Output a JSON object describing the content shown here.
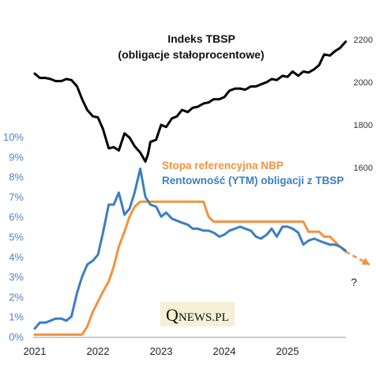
{
  "chart_data": {
    "type": "line",
    "title": "Indeks TBSP",
    "subtitle": "(obligacje stałoprocentowe)",
    "x_ticks": [
      "2021",
      "2022",
      "2023",
      "2024",
      "2025"
    ],
    "x_range": [
      2021.0,
      2026.3
    ],
    "y_left": {
      "ticks": [
        "0%",
        "1%",
        "2%",
        "3%",
        "4%",
        "5%",
        "6%",
        "7%",
        "8%",
        "9%",
        "10%"
      ],
      "range": [
        0,
        10
      ]
    },
    "y_right": {
      "ticks": [
        "1600",
        "1800",
        "2000",
        "2200"
      ],
      "range": [
        1600,
        2200
      ]
    },
    "grid": false,
    "legend_position": "center-right",
    "series": [
      {
        "name": "Indeks TBSP",
        "axis": "right",
        "color": "#000000",
        "x": [
          2021.0,
          2021.08,
          2021.17,
          2021.25,
          2021.33,
          2021.42,
          2021.5,
          2021.58,
          2021.67,
          2021.75,
          2021.83,
          2021.92,
          2022.0,
          2022.08,
          2022.17,
          2022.25,
          2022.33,
          2022.42,
          2022.5,
          2022.58,
          2022.67,
          2022.75,
          2022.79,
          2022.83,
          2022.92,
          2023.0,
          2023.08,
          2023.17,
          2023.25,
          2023.33,
          2023.42,
          2023.5,
          2023.58,
          2023.67,
          2023.75,
          2023.83,
          2023.92,
          2024.0,
          2024.08,
          2024.17,
          2024.25,
          2024.33,
          2024.42,
          2024.5,
          2024.58,
          2024.67,
          2024.75,
          2024.83,
          2024.92,
          2025.0,
          2025.08,
          2025.17,
          2025.25,
          2025.33,
          2025.42,
          2025.5,
          2025.58,
          2025.67,
          2025.75,
          2025.83,
          2025.92
        ],
        "values": [
          2040,
          2020,
          2020,
          2015,
          2005,
          2005,
          2015,
          2010,
          1980,
          1920,
          1870,
          1840,
          1835,
          1780,
          1690,
          1695,
          1680,
          1760,
          1740,
          1700,
          1670,
          1628,
          1660,
          1720,
          1730,
          1800,
          1790,
          1830,
          1840,
          1870,
          1860,
          1880,
          1885,
          1900,
          1905,
          1920,
          1920,
          1930,
          1960,
          1970,
          1970,
          1965,
          1980,
          1980,
          1990,
          2000,
          2015,
          2010,
          2030,
          2025,
          2050,
          2030,
          2050,
          2045,
          2060,
          2080,
          2130,
          2125,
          2145,
          2160,
          2190
        ]
      },
      {
        "name": "Stopa referencyjna NBP",
        "axis": "left",
        "color": "#f4923e",
        "x": [
          2021.0,
          2021.75,
          2021.83,
          2021.92,
          2022.0,
          2022.08,
          2022.17,
          2022.25,
          2022.33,
          2022.42,
          2022.5,
          2022.58,
          2022.67,
          2022.75,
          2023.0,
          2023.5,
          2023.67,
          2023.75,
          2023.83,
          2024.0,
          2024.5,
          2025.0,
          2025.25,
          2025.33,
          2025.5,
          2025.58,
          2025.67,
          2025.75,
          2025.83,
          2025.92
        ],
        "values": [
          0.1,
          0.1,
          0.5,
          1.25,
          1.75,
          2.25,
          2.75,
          3.5,
          4.5,
          5.25,
          6.0,
          6.5,
          6.75,
          6.75,
          6.75,
          6.75,
          6.75,
          6.0,
          5.75,
          5.75,
          5.75,
          5.75,
          5.75,
          5.25,
          5.25,
          5.0,
          5.0,
          4.75,
          4.5,
          4.25
        ]
      },
      {
        "name": "Rentowność (YTM) obligacji z TBSP",
        "axis": "left",
        "color": "#3b7ec2",
        "x": [
          2021.0,
          2021.08,
          2021.17,
          2021.25,
          2021.33,
          2021.42,
          2021.5,
          2021.58,
          2021.67,
          2021.75,
          2021.83,
          2021.92,
          2022.0,
          2022.08,
          2022.17,
          2022.25,
          2022.33,
          2022.42,
          2022.5,
          2022.58,
          2022.67,
          2022.75,
          2022.79,
          2022.83,
          2022.92,
          2023.0,
          2023.08,
          2023.17,
          2023.25,
          2023.33,
          2023.42,
          2023.5,
          2023.58,
          2023.67,
          2023.75,
          2023.83,
          2023.92,
          2024.0,
          2024.08,
          2024.17,
          2024.25,
          2024.33,
          2024.42,
          2024.5,
          2024.58,
          2024.67,
          2024.75,
          2024.83,
          2024.92,
          2025.0,
          2025.08,
          2025.17,
          2025.25,
          2025.33,
          2025.42,
          2025.5,
          2025.58,
          2025.67,
          2025.75,
          2025.83,
          2025.92
        ],
        "values": [
          0.4,
          0.7,
          0.7,
          0.8,
          0.9,
          0.9,
          0.8,
          1.0,
          2.2,
          3.0,
          3.6,
          3.8,
          4.1,
          5.2,
          6.6,
          6.6,
          7.2,
          6.1,
          6.4,
          7.2,
          8.4,
          7.0,
          6.8,
          6.6,
          6.5,
          6.0,
          6.2,
          5.9,
          5.8,
          5.7,
          5.6,
          5.4,
          5.4,
          5.3,
          5.3,
          5.2,
          5.0,
          5.1,
          5.3,
          5.4,
          5.5,
          5.4,
          5.3,
          5.0,
          4.9,
          5.1,
          5.4,
          5.0,
          5.5,
          5.5,
          5.4,
          5.2,
          4.6,
          4.8,
          4.9,
          4.8,
          4.7,
          4.6,
          4.6,
          4.5,
          4.3
        ]
      }
    ],
    "forecast": {
      "x": [
        2025.92,
        2026.3
      ],
      "values": [
        4.25,
        3.6
      ],
      "color": "#f4923e"
    },
    "annotation": "?",
    "watermark": {
      "q": "Q",
      "rest": "NEWS.PL"
    }
  }
}
